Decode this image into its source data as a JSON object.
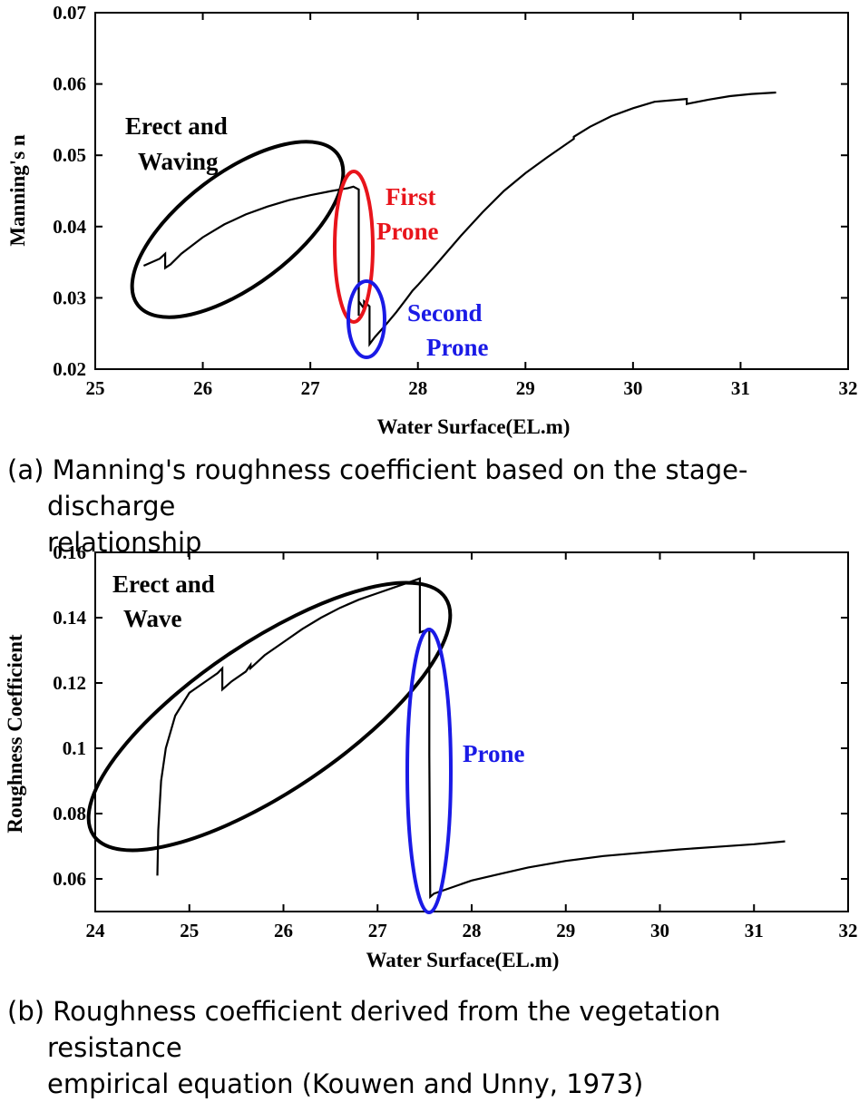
{
  "chart_data": [
    {
      "type": "line",
      "xlabel": "Water Surface(EL.m)",
      "ylabel": "Manning's n",
      "xlim": [
        25,
        32
      ],
      "ylim": [
        0.02,
        0.07
      ],
      "xticks": [
        25,
        26,
        27,
        28,
        29,
        30,
        31,
        32
      ],
      "yticks": [
        0.02,
        0.03,
        0.04,
        0.05,
        0.06,
        0.07
      ],
      "ytick_labels": [
        "0.02",
        "0.03",
        "0.04",
        "0.05",
        "0.06",
        "0.07"
      ],
      "series": [
        {
          "x": [
            25.45,
            25.6,
            25.65,
            25.65,
            25.7,
            25.8,
            26.0,
            26.2,
            26.4,
            26.6,
            26.8,
            27.0,
            27.2,
            27.35,
            27.4,
            27.45,
            27.45,
            27.45,
            27.5,
            27.5,
            27.55,
            27.55,
            27.6,
            27.7,
            27.8,
            27.9,
            27.95,
            28.0,
            28.2,
            28.4,
            28.6,
            28.8,
            29.0,
            29.2,
            29.45,
            29.45,
            29.6,
            29.8,
            30.0,
            30.2,
            30.5,
            30.5,
            30.7,
            30.9,
            31.1,
            31.33
          ],
          "y": [
            0.0345,
            0.0355,
            0.0362,
            0.0342,
            0.0347,
            0.0362,
            0.0385,
            0.0403,
            0.0417,
            0.0428,
            0.0437,
            0.0444,
            0.045,
            0.0454,
            0.0456,
            0.0452,
            0.0275,
            0.0295,
            0.0285,
            0.0295,
            0.0288,
            0.0235,
            0.0245,
            0.0262,
            0.028,
            0.03,
            0.031,
            0.0318,
            0.0352,
            0.0387,
            0.042,
            0.045,
            0.0475,
            0.0497,
            0.0523,
            0.0526,
            0.054,
            0.0555,
            0.0566,
            0.0575,
            0.0579,
            0.0572,
            0.0578,
            0.0583,
            0.0586,
            0.0588
          ]
        }
      ],
      "annotations": [
        {
          "text": [
            "Erect and",
            "Waving"
          ],
          "color": "#000000"
        },
        {
          "text": [
            "First",
            "Prone"
          ],
          "color": "#e8141b"
        },
        {
          "text": [
            "Second",
            "Prone"
          ],
          "color": "#1a1ae6"
        }
      ]
    },
    {
      "type": "line",
      "xlabel": "Water Surface(EL.m)",
      "ylabel": "Roughness Coefficient",
      "xlim": [
        24,
        32
      ],
      "ylim": [
        0.05,
        0.16
      ],
      "xticks": [
        24,
        25,
        26,
        27,
        28,
        29,
        30,
        31,
        32
      ],
      "yticks": [
        0.06,
        0.08,
        0.1,
        0.12,
        0.14,
        0.16
      ],
      "ytick_labels": [
        "0.06",
        "0.08",
        "0.1",
        "0.12",
        "0.14",
        "0.16"
      ],
      "series": [
        {
          "x": [
            24.66,
            24.67,
            24.7,
            24.75,
            24.85,
            25.0,
            25.15,
            25.3,
            25.35,
            25.35,
            25.45,
            25.6,
            25.65,
            25.65,
            25.8,
            26.0,
            26.2,
            26.4,
            26.6,
            26.8,
            27.0,
            27.2,
            27.35,
            27.45,
            27.45,
            27.5,
            27.55,
            27.55,
            27.56,
            27.6,
            27.8,
            28.0,
            28.3,
            28.6,
            29.0,
            29.4,
            29.8,
            30.2,
            30.6,
            31.0,
            31.33
          ],
          "y": [
            0.061,
            0.075,
            0.09,
            0.1,
            0.11,
            0.117,
            0.12,
            0.123,
            0.1245,
            0.118,
            0.1205,
            0.1235,
            0.1255,
            0.1245,
            0.1285,
            0.1325,
            0.1365,
            0.14,
            0.143,
            0.1455,
            0.1475,
            0.1495,
            0.151,
            0.152,
            0.1355,
            0.136,
            0.1365,
            0.098,
            0.0545,
            0.0555,
            0.0575,
            0.0595,
            0.0615,
            0.0635,
            0.0655,
            0.067,
            0.068,
            0.069,
            0.0698,
            0.0706,
            0.0715
          ]
        }
      ],
      "annotations": [
        {
          "text": [
            "Erect and",
            "Wave"
          ],
          "color": "#000000"
        },
        {
          "text": [
            "Prone"
          ],
          "color": "#1a1ae6"
        }
      ]
    }
  ],
  "captions": [
    {
      "line1": "(a) Manning's roughness coefficient based on the stage-discharge",
      "line2": "relationship"
    },
    {
      "line1": "(b) Roughness coefficient derived from the vegetation resistance",
      "line2": "empirical equation (Kouwen and Unny, 1973)"
    }
  ]
}
